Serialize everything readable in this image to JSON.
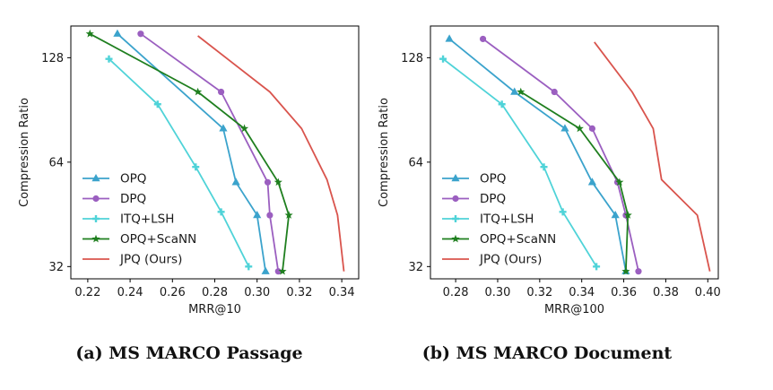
{
  "chart_data": [
    {
      "type": "line",
      "caption": "(a) MS MARCO Passage",
      "xlabel": "MRR@10",
      "ylabel": "Compression Ratio",
      "xlim": [
        0.212,
        0.348
      ],
      "ylim": [
        29.5,
        158
      ],
      "y_scale": "log",
      "x_ticks": [
        0.22,
        0.24,
        0.26,
        0.28,
        0.3,
        0.32,
        0.34
      ],
      "x_tick_labels": [
        "0.22",
        "0.24",
        "0.26",
        "0.28",
        "0.30",
        "0.32",
        "0.34"
      ],
      "y_ticks": [
        32,
        64,
        128
      ],
      "y_tick_labels": [
        "32",
        "64",
        "128"
      ],
      "grid": false,
      "legend_position": "lower-left",
      "series": [
        {
          "name": "OPQ",
          "color": "#3ba3cc",
          "marker": "triangle",
          "points": [
            [
              0.234,
              150
            ],
            [
              0.284,
              80
            ],
            [
              0.29,
              56
            ],
            [
              0.3,
              45
            ],
            [
              0.304,
              31
            ]
          ]
        },
        {
          "name": "DPQ",
          "color": "#9b5fc0",
          "marker": "circle",
          "points": [
            [
              0.245,
              150
            ],
            [
              0.283,
              102
            ],
            [
              0.305,
              56
            ],
            [
              0.306,
              45
            ],
            [
              0.31,
              31
            ]
          ]
        },
        {
          "name": "ITQ+LSH",
          "color": "#4fd3d8",
          "marker": "plus",
          "points": [
            [
              0.23,
              127
            ],
            [
              0.253,
              94
            ],
            [
              0.271,
              62
            ],
            [
              0.283,
              46
            ],
            [
              0.296,
              32
            ]
          ]
        },
        {
          "name": "OPQ+ScaNN",
          "color": "#1f7f1f",
          "marker": "star",
          "points": [
            [
              0.221,
              150
            ],
            [
              0.272,
              102
            ],
            [
              0.294,
              80
            ],
            [
              0.31,
              56
            ],
            [
              0.315,
              45
            ],
            [
              0.312,
              31
            ]
          ]
        },
        {
          "name": "JPQ (Ours)",
          "color": "#d9544d",
          "marker": "none",
          "points": [
            [
              0.272,
              148
            ],
            [
              0.306,
              102
            ],
            [
              0.321,
              80
            ],
            [
              0.333,
              57
            ],
            [
              0.338,
              45
            ],
            [
              0.341,
              31
            ]
          ]
        }
      ]
    },
    {
      "type": "line",
      "caption": "(b) MS MARCO Document",
      "xlabel": "MRR@100",
      "ylabel": "Compression Ratio",
      "xlim": [
        0.268,
        0.405
      ],
      "ylim": [
        29.5,
        158
      ],
      "y_scale": "log",
      "x_ticks": [
        0.28,
        0.3,
        0.32,
        0.34,
        0.36,
        0.38,
        0.4
      ],
      "x_tick_labels": [
        "0.28",
        "0.30",
        "0.32",
        "0.34",
        "0.36",
        "0.38",
        "0.40"
      ],
      "y_ticks": [
        32,
        64,
        128
      ],
      "y_tick_labels": [
        "32",
        "64",
        "128"
      ],
      "grid": false,
      "legend_position": "lower-left",
      "series": [
        {
          "name": "OPQ",
          "color": "#3ba3cc",
          "marker": "triangle",
          "points": [
            [
              0.277,
              145
            ],
            [
              0.308,
              102
            ],
            [
              0.332,
              80
            ],
            [
              0.345,
              56
            ],
            [
              0.356,
              45
            ],
            [
              0.361,
              31
            ]
          ]
        },
        {
          "name": "DPQ",
          "color": "#9b5fc0",
          "marker": "circle",
          "points": [
            [
              0.293,
              145
            ],
            [
              0.327,
              102
            ],
            [
              0.345,
              80
            ],
            [
              0.357,
              56
            ],
            [
              0.361,
              45
            ],
            [
              0.367,
              31
            ]
          ]
        },
        {
          "name": "ITQ+LSH",
          "color": "#4fd3d8",
          "marker": "plus",
          "points": [
            [
              0.274,
              127
            ],
            [
              0.302,
              94
            ],
            [
              0.322,
              62
            ],
            [
              0.331,
              46
            ],
            [
              0.347,
              32
            ]
          ]
        },
        {
          "name": "OPQ+ScaNN",
          "color": "#1f7f1f",
          "marker": "star",
          "points": [
            [
              0.311,
              102
            ],
            [
              0.339,
              80
            ],
            [
              0.358,
              56
            ],
            [
              0.362,
              45
            ],
            [
              0.361,
              31
            ]
          ]
        },
        {
          "name": "JPQ (Ours)",
          "color": "#d9544d",
          "marker": "none",
          "points": [
            [
              0.346,
              142
            ],
            [
              0.364,
              102
            ],
            [
              0.374,
              80
            ],
            [
              0.378,
              57
            ],
            [
              0.395,
              45
            ],
            [
              0.401,
              31
            ]
          ]
        }
      ]
    }
  ]
}
